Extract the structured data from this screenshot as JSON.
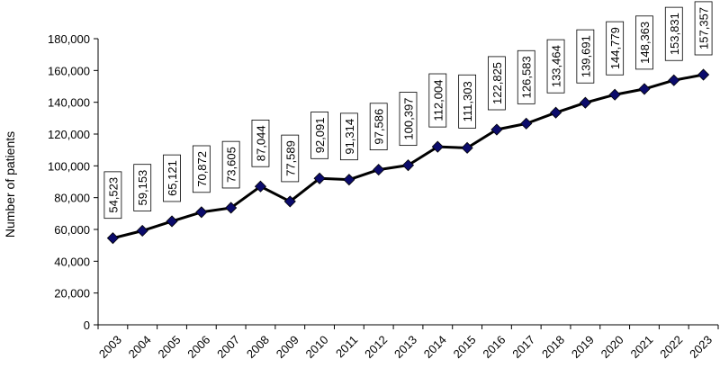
{
  "chart_data": {
    "type": "line",
    "title": "",
    "xlabel": "",
    "ylabel": "Number of patients",
    "ylim": [
      0,
      180000
    ],
    "yticks": [
      "0",
      "20,000",
      "40,000",
      "60,000",
      "80,000",
      "100,000",
      "120,000",
      "140,000",
      "160,000",
      "180,000"
    ],
    "categories": [
      "2003",
      "2004",
      "2005",
      "2006",
      "2007",
      "2008",
      "2009",
      "2010",
      "2011",
      "2012",
      "2013",
      "2014",
      "2015",
      "2016",
      "2017",
      "2018",
      "2019",
      "2020",
      "2021",
      "2022",
      "2023"
    ],
    "series": [
      {
        "values": [
          54523,
          59153,
          65121,
          70872,
          73605,
          87044,
          77589,
          92091,
          91314,
          97586,
          100397,
          112004,
          111303,
          122825,
          126583,
          133464,
          139691,
          144779,
          148363,
          153831,
          157357
        ],
        "labels": [
          "54,523",
          "59,153",
          "65,121",
          "70,872",
          "73,605",
          "87,044",
          "77,589",
          "92,091",
          "91,314",
          "97,586",
          "100,397",
          "112,004",
          "111,303",
          "122,825",
          "126,583",
          "133,464",
          "139,691",
          "144,779",
          "148,363",
          "153,831",
          "157,357"
        ]
      }
    ],
    "grid": false,
    "legend": "none",
    "colors": {
      "line": "#000000",
      "marker": "#0b0b6b"
    }
  }
}
